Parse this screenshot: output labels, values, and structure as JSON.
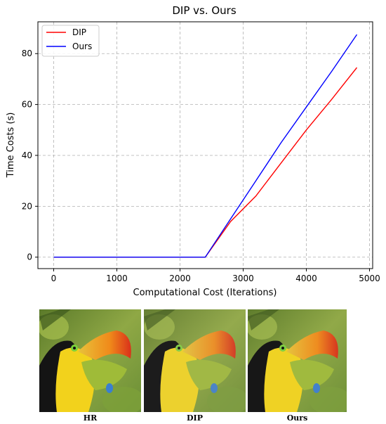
{
  "chart_data": {
    "type": "line",
    "title": "DIP vs. Ours",
    "xlabel": "Computational Cost (Iterations)",
    "ylabel": "Time Costs (s)",
    "xlim": [
      -250,
      5050
    ],
    "ylim": [
      -4.5,
      92.5
    ],
    "xticks": [
      0,
      1000,
      2000,
      3000,
      4000,
      5000
    ],
    "yticks": [
      0,
      20,
      40,
      60,
      80
    ],
    "grid": true,
    "legend": "top-left",
    "series": [
      {
        "name": "DIP",
        "color": "#ff0000",
        "x": [
          0,
          2400,
          2800,
          3200,
          3600,
          4000,
          4400,
          4800
        ],
        "y": [
          0,
          0,
          14,
          24,
          37,
          50,
          62,
          74.5
        ]
      },
      {
        "name": "Ours",
        "color": "#0000ff",
        "x": [
          0,
          2400,
          2800,
          3200,
          3600,
          4000,
          4400,
          4800
        ],
        "y": [
          0,
          0,
          15,
          30,
          45,
          59,
          73,
          87.5
        ]
      }
    ]
  },
  "panels": [
    {
      "label": "HR"
    },
    {
      "label": "DIP"
    },
    {
      "label": "Ours"
    }
  ]
}
